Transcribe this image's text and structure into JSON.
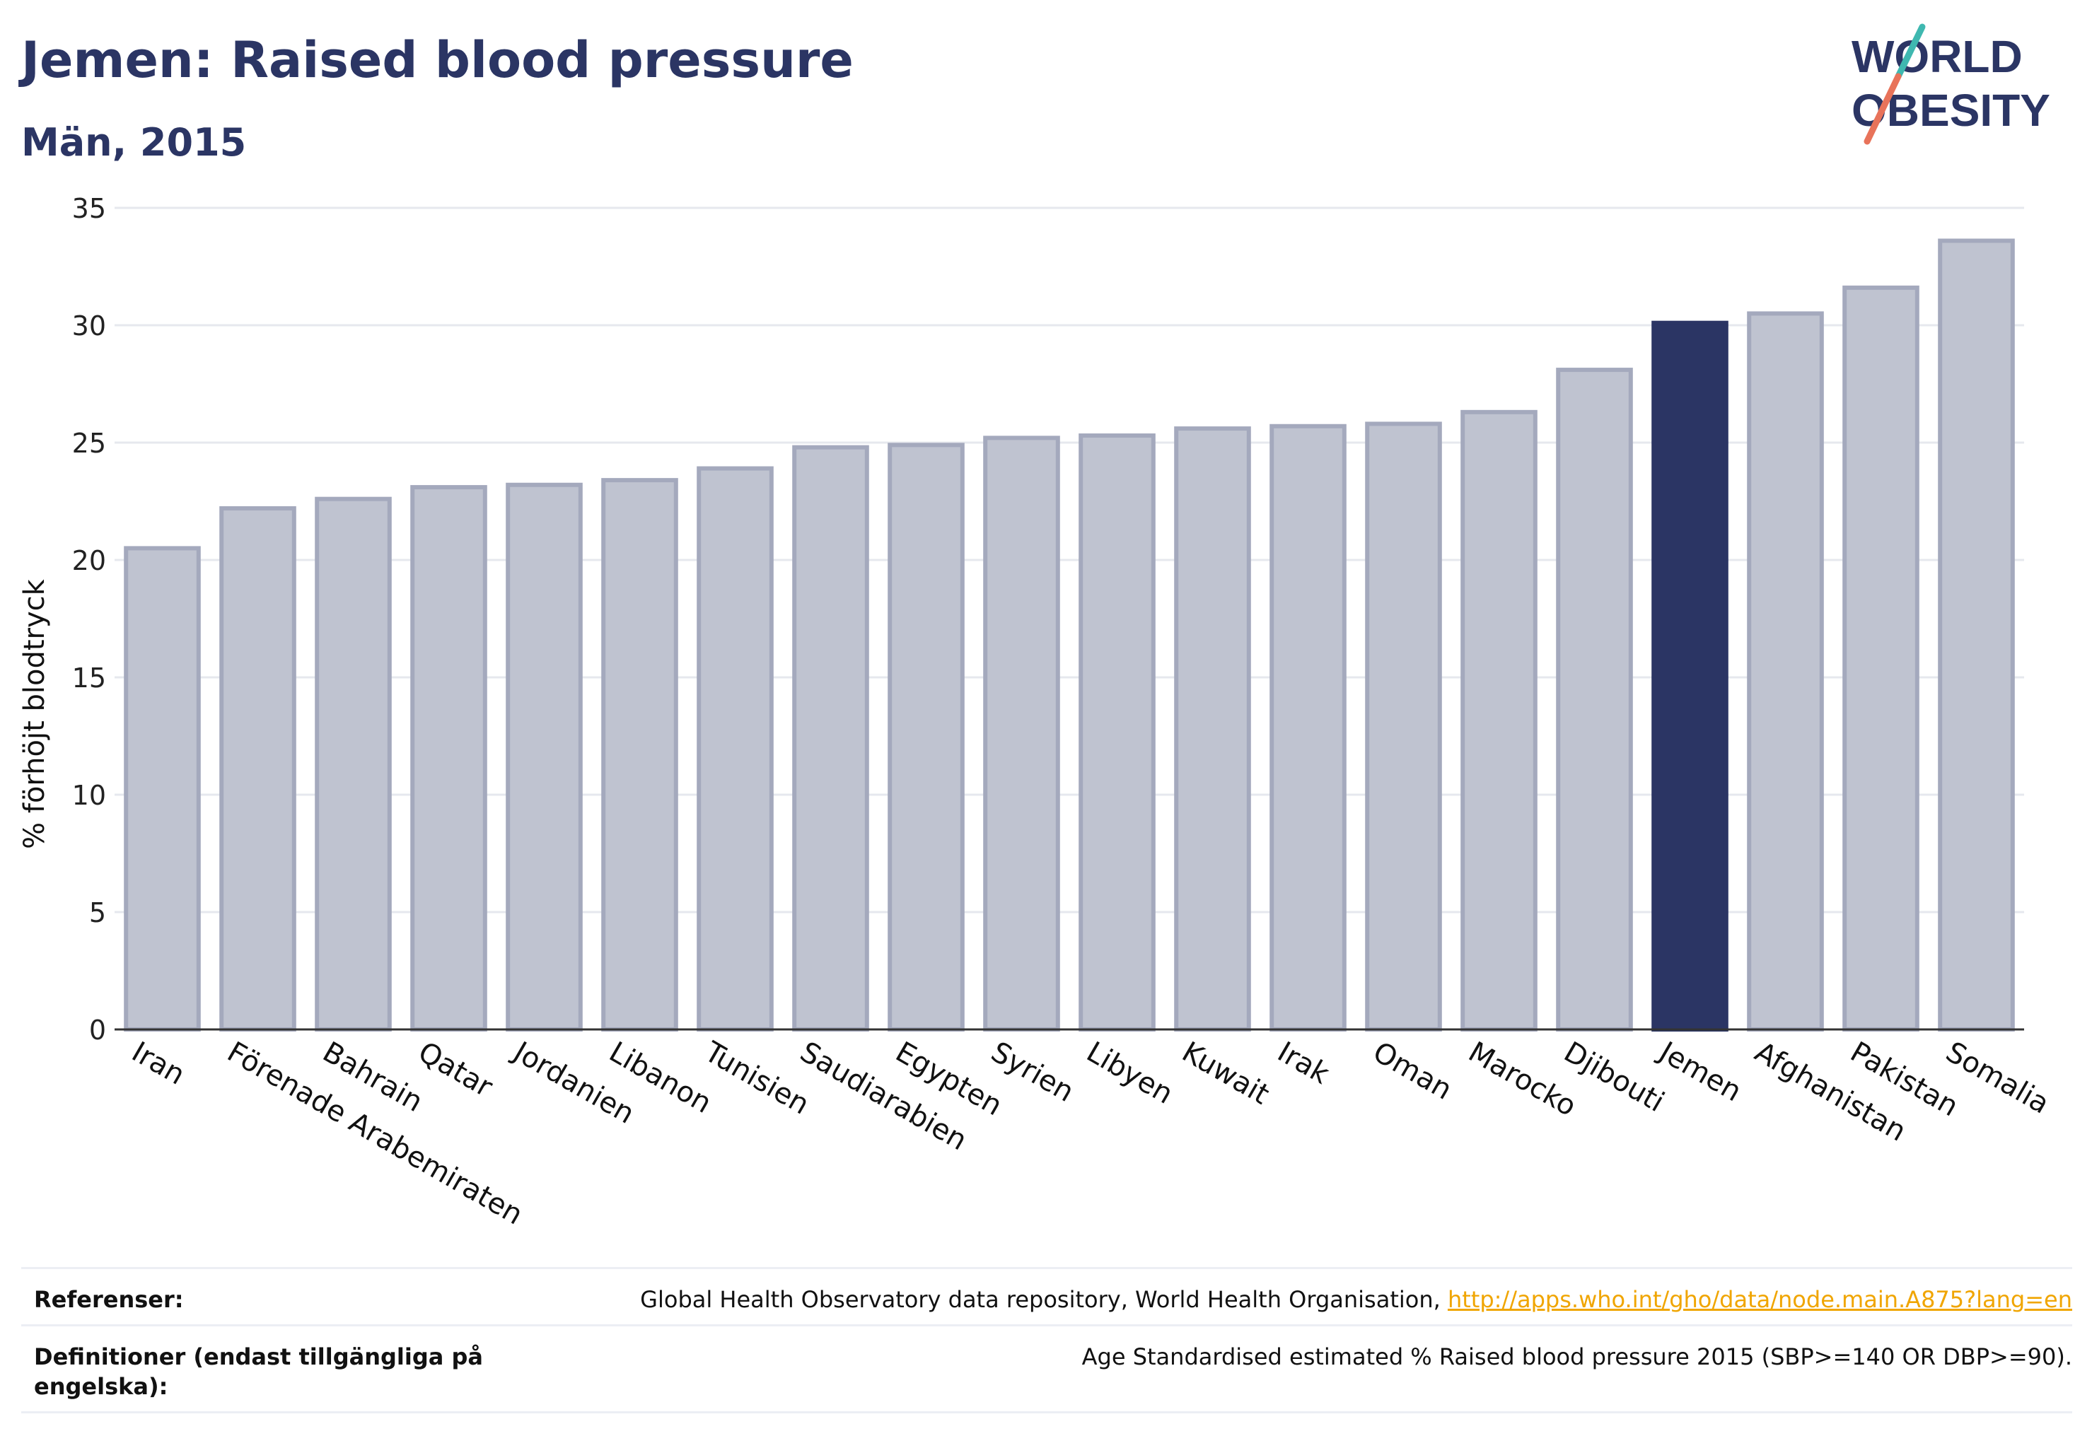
{
  "title": "Jemen: Raised blood pressure",
  "subtitle": "Män, 2015",
  "logo": {
    "line1": "WORLD",
    "line2": "OBESITY",
    "color": "#2b3564",
    "accent_teal": "#3fb8b0",
    "accent_coral": "#e8735a"
  },
  "colors": {
    "highlight": "#2b3564",
    "bar": "#bfc3d0",
    "bar_edge": "#a4a9bd",
    "grid": "#e6e8ee",
    "axis": "#333333"
  },
  "chart_data": {
    "type": "bar",
    "title": "Jemen: Raised blood pressure",
    "subtitle": "Män, 2015",
    "xlabel": "",
    "ylabel": "% förhöjt blodtryck",
    "ylim": [
      0,
      35
    ],
    "yticks": [
      0,
      5,
      10,
      15,
      20,
      25,
      30,
      35
    ],
    "grid": true,
    "highlight": "Jemen",
    "categories": [
      "Iran",
      "Förenade Arabemiraten",
      "Bahrain",
      "Qatar",
      "Jordanien",
      "Libanon",
      "Tunisien",
      "Saudiarabien",
      "Egypten",
      "Syrien",
      "Libyen",
      "Kuwait",
      "Irak",
      "Oman",
      "Marocko",
      "Djibouti",
      "Jemen",
      "Afghanistan",
      "Pakistan",
      "Somalia"
    ],
    "values": [
      20.5,
      22.2,
      22.6,
      23.1,
      23.2,
      23.4,
      23.9,
      24.8,
      24.9,
      25.2,
      25.3,
      25.6,
      25.7,
      25.8,
      26.3,
      28.1,
      30.1,
      30.5,
      31.6,
      33.6
    ]
  },
  "references": {
    "label": "Referenser:",
    "text": "Global Health Observatory data repository, World Health Organisation, ",
    "link": "http://apps.who.int/gho/data/node.main.A875?lang=en"
  },
  "definitions": {
    "label": "Definitioner (endast tillgängliga på engelska):",
    "text": "Age Standardised estimated % Raised blood pressure 2015 (SBP>=140 OR DBP>=90)."
  }
}
